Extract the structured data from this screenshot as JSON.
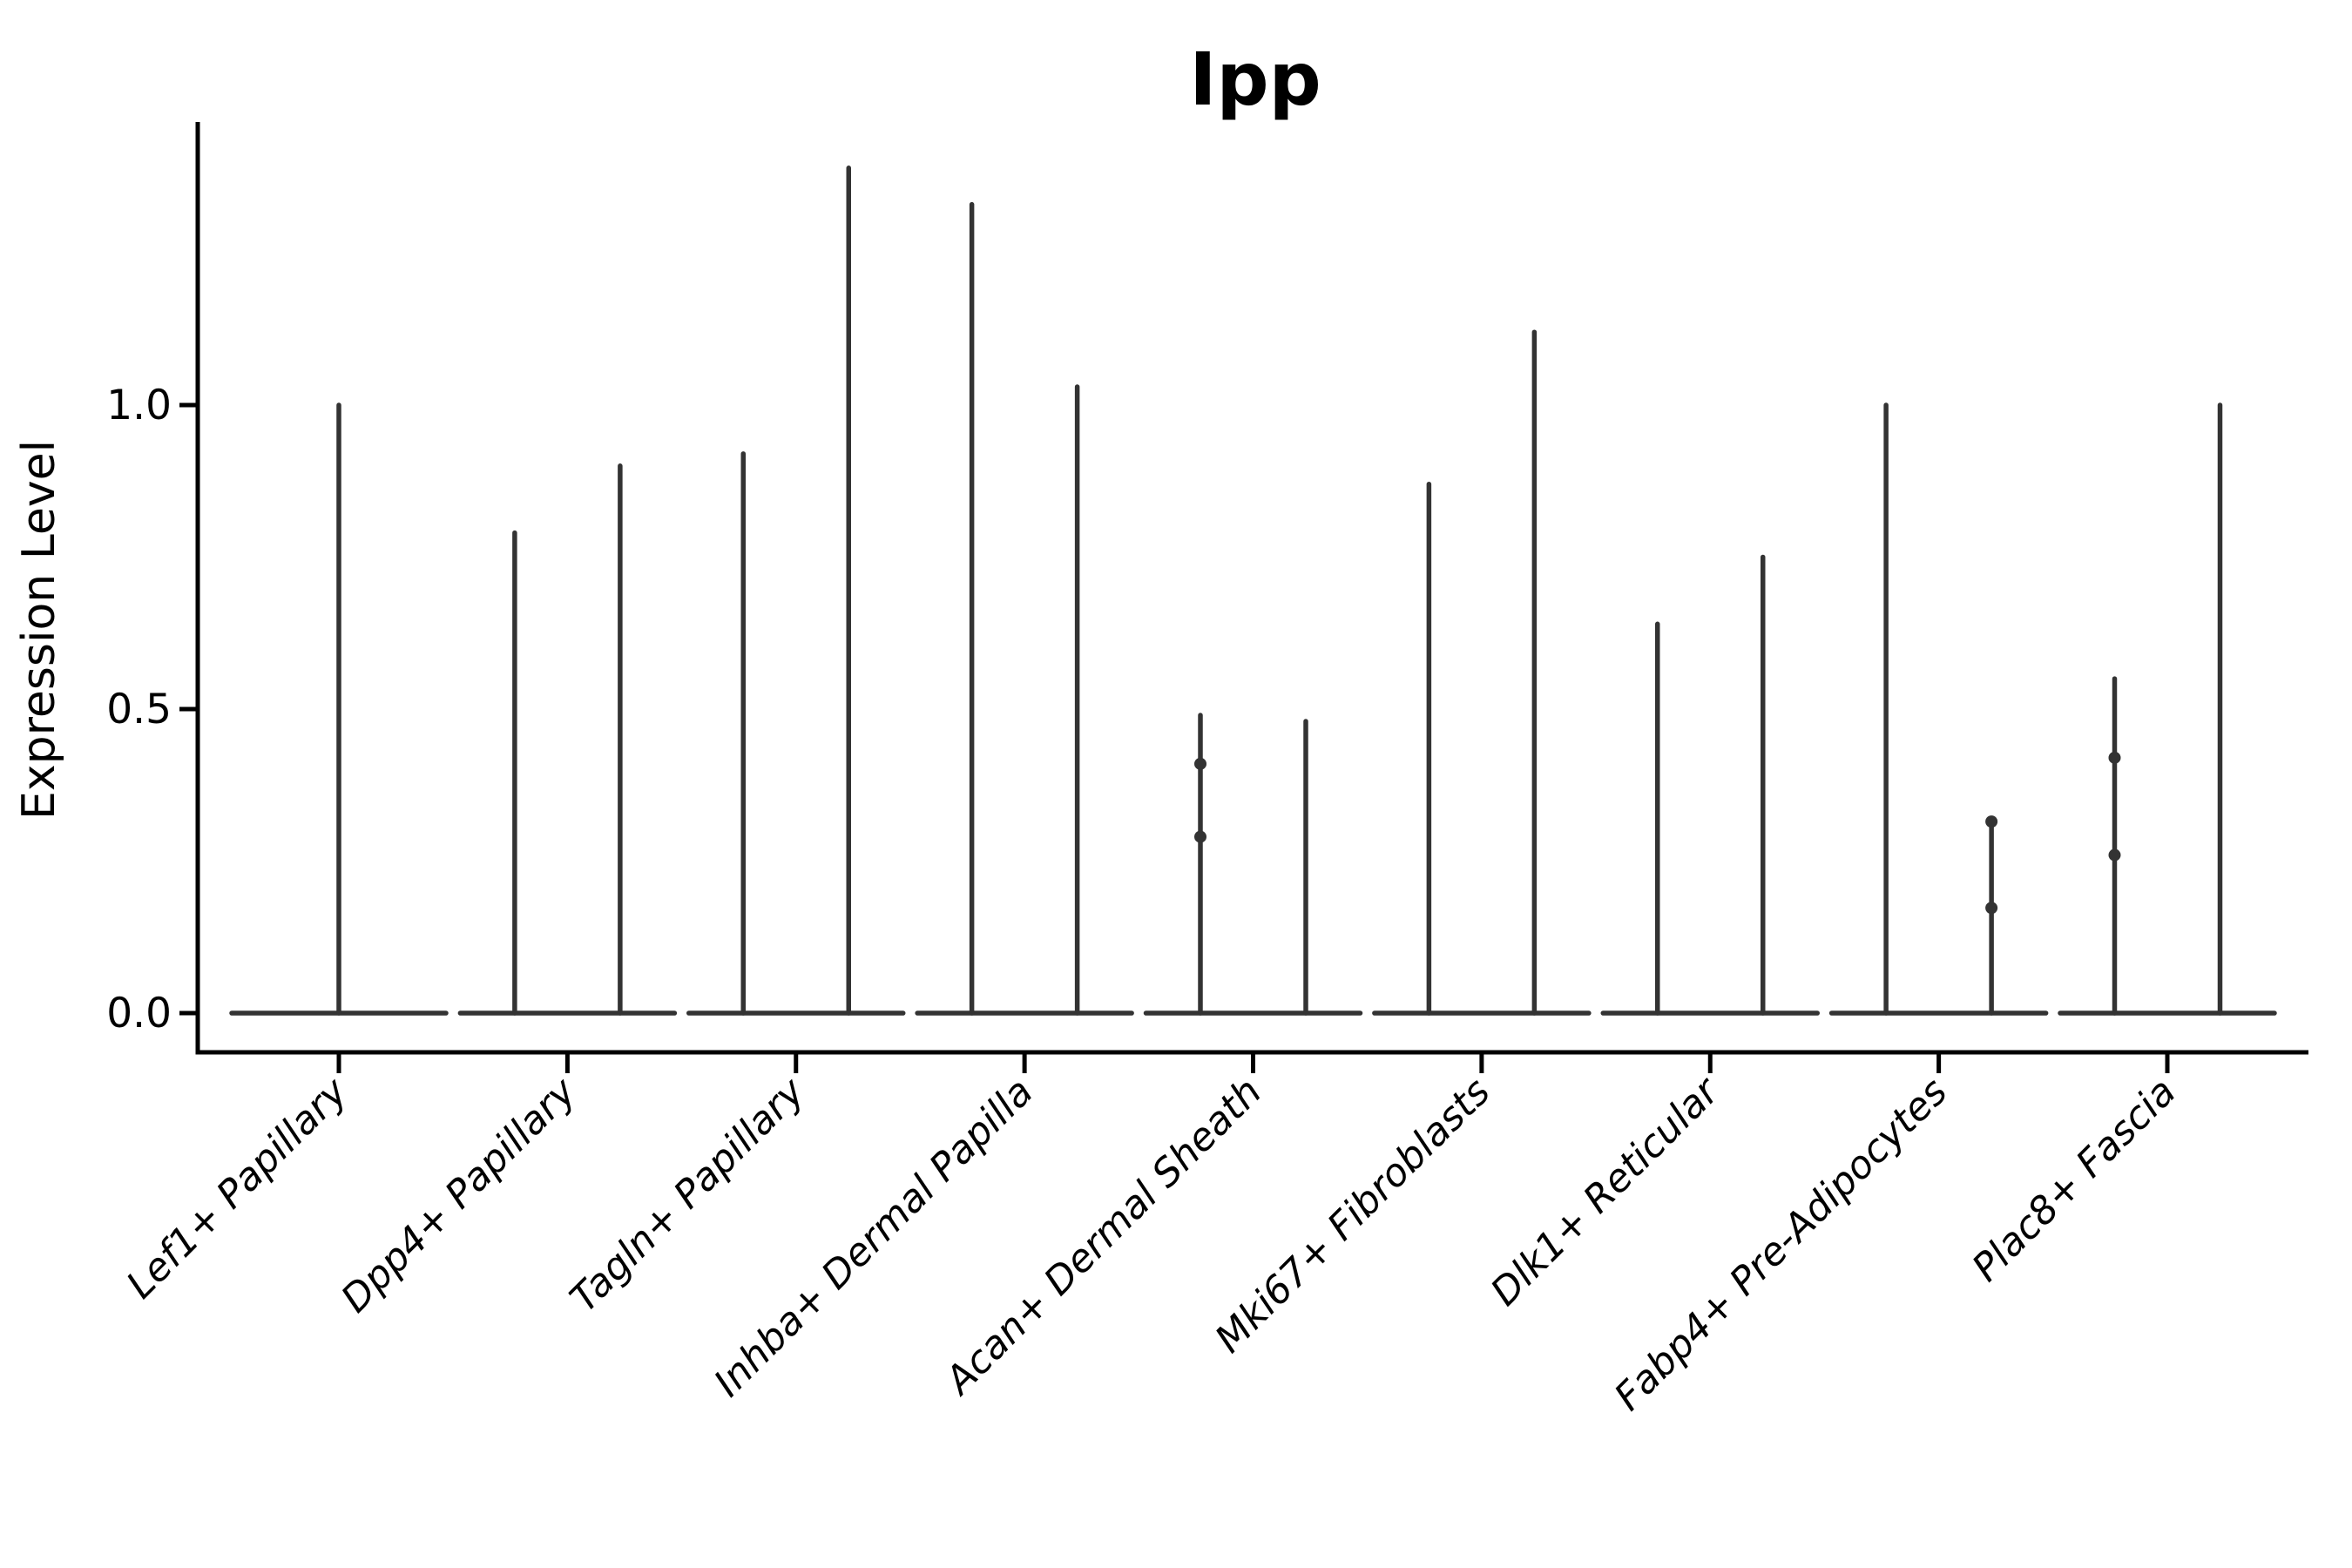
{
  "chart_data": {
    "type": "violin",
    "title": "Ipp",
    "ylabel": "Expression Level",
    "xlabel": "",
    "categories": [
      "Lef1+ Papillary",
      "Dpp4+ Papillary",
      "Tagln+ Papillary",
      "Inhba+ Dermal Papilla",
      "Acan+ Dermal Sheath",
      "Mki67+ Fibroblasts",
      "Dlk1+ Reticular",
      "Fabp4+ Pre-Adipocytes",
      "Plac8+ Fascia"
    ],
    "yticks": [
      "0.0",
      "0.5",
      "1.0"
    ],
    "ytick_values": [
      0.0,
      0.5,
      1.0
    ],
    "ylim": [
      -0.065,
      1.47
    ],
    "grid": false,
    "legend_position": "none",
    "line_color": "#333333",
    "axis_color": "#000000",
    "violins": [
      {
        "category": "Lef1+ Papillary",
        "groups": [
          {
            "max": 1.0,
            "bumps": []
          }
        ]
      },
      {
        "category": "Dpp4+ Papillary",
        "groups": [
          {
            "max": 0.79,
            "bumps": []
          },
          {
            "max": 0.9,
            "bumps": []
          }
        ]
      },
      {
        "category": "Tagln+ Papillary",
        "groups": [
          {
            "max": 0.92,
            "bumps": []
          },
          {
            "max": 1.39,
            "bumps": []
          }
        ]
      },
      {
        "category": "Inhba+ Dermal Papilla",
        "groups": [
          {
            "max": 1.33,
            "bumps": []
          },
          {
            "max": 1.03,
            "bumps": []
          }
        ]
      },
      {
        "category": "Acan+ Dermal Sheath",
        "groups": [
          {
            "max": 0.49,
            "bumps": [
              0.41,
              0.29
            ]
          },
          {
            "max": 0.48,
            "bumps": []
          }
        ]
      },
      {
        "category": "Mki67+ Fibroblasts",
        "groups": [
          {
            "max": 0.87,
            "bumps": []
          },
          {
            "max": 1.12,
            "bumps": []
          }
        ]
      },
      {
        "category": "Dlk1+ Reticular",
        "groups": [
          {
            "max": 0.64,
            "bumps": []
          },
          {
            "max": 0.75,
            "bumps": []
          }
        ]
      },
      {
        "category": "Fabp4+ Pre-Adipocytes",
        "groups": [
          {
            "max": 1.0,
            "bumps": []
          },
          {
            "max": 0.32,
            "bumps": [
              0.315,
              0.173
            ]
          }
        ]
      },
      {
        "category": "Plac8+ Fascia",
        "groups": [
          {
            "max": 0.55,
            "bumps": [
              0.42,
              0.26
            ]
          },
          {
            "max": 1.0,
            "bumps": []
          }
        ]
      }
    ]
  }
}
